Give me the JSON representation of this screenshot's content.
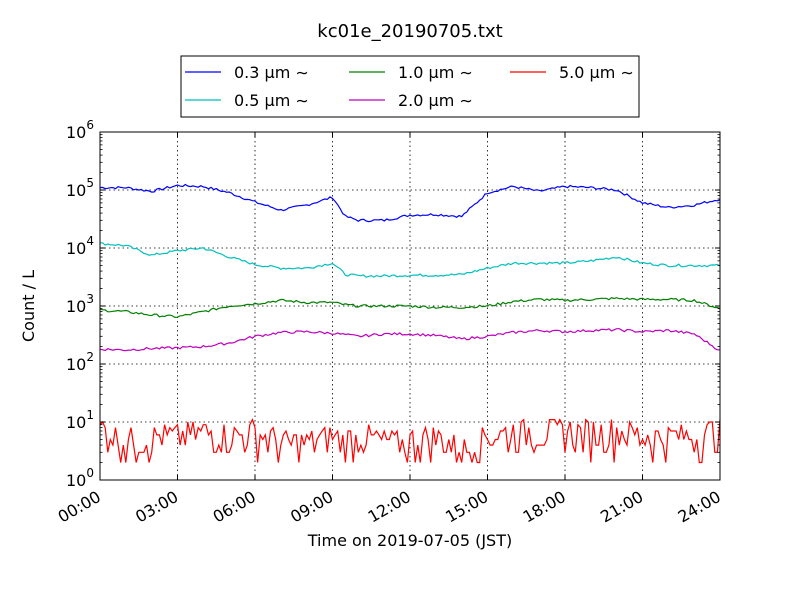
{
  "chart_data": {
    "type": "line",
    "title": "kc01e_20190705.txt",
    "xlabel": "Time on 2019-07-05 (JST)",
    "ylabel": "Count / L",
    "yscale": "log",
    "ylim": [
      1,
      1000000
    ],
    "xlim": [
      "00:00",
      "24:00"
    ],
    "grid": true,
    "legend_position": "top-center",
    "x_tick_labels": [
      "00:00",
      "03:00",
      "06:00",
      "09:00",
      "12:00",
      "15:00",
      "18:00",
      "21:00",
      "24:00"
    ],
    "y_tick_labels": [
      {
        "base": "10",
        "exp": "0"
      },
      {
        "base": "10",
        "exp": "1"
      },
      {
        "base": "10",
        "exp": "2"
      },
      {
        "base": "10",
        "exp": "3"
      },
      {
        "base": "10",
        "exp": "4"
      },
      {
        "base": "10",
        "exp": "5"
      },
      {
        "base": "10",
        "exp": "6"
      }
    ],
    "x_hours": [
      0,
      1,
      2,
      3,
      4,
      5,
      6,
      7,
      8,
      9,
      9.5,
      10,
      11,
      12,
      13,
      14,
      15,
      16,
      17,
      18,
      19,
      20,
      21,
      22,
      23,
      24
    ],
    "series": [
      {
        "name": "0.3 µm ∼",
        "color": "#0000ff",
        "values": [
          110000,
          110000,
          95000,
          120000,
          115000,
          90000,
          62000,
          45000,
          55000,
          75000,
          35000,
          30000,
          30000,
          37000,
          38000,
          35000,
          90000,
          115000,
          95000,
          115000,
          110000,
          100000,
          60000,
          50000,
          55000,
          70000
        ]
      },
      {
        "name": "0.5 µm ∼",
        "color": "#00bfbf",
        "values": [
          12000,
          11000,
          7500,
          9000,
          10000,
          7000,
          5200,
          4500,
          4500,
          5500,
          3500,
          3300,
          3300,
          3400,
          3400,
          3500,
          4500,
          5500,
          5500,
          5500,
          6000,
          7000,
          5500,
          5000,
          5000,
          5000
        ]
      },
      {
        "name": "1.0 µm ∼",
        "color": "#008000",
        "values": [
          850,
          800,
          700,
          650,
          800,
          1000,
          1100,
          1250,
          1150,
          1150,
          1050,
          1000,
          1000,
          1000,
          950,
          950,
          1000,
          1200,
          1300,
          1250,
          1300,
          1350,
          1300,
          1300,
          1250,
          900
        ]
      },
      {
        "name": "2.0 µm ∼",
        "color": "#bf00bf",
        "values": [
          180,
          175,
          185,
          190,
          200,
          230,
          300,
          350,
          360,
          340,
          320,
          300,
          330,
          330,
          310,
          270,
          300,
          350,
          380,
          360,
          380,
          390,
          360,
          380,
          330,
          170
        ]
      },
      {
        "name": "5.0 µm ∼",
        "color": "#ff0000",
        "values": [
          7,
          4,
          5,
          5,
          6,
          5,
          6,
          4,
          4,
          5,
          4,
          5,
          4,
          4,
          5,
          3,
          5,
          6,
          6,
          6,
          6,
          6,
          5,
          5,
          5,
          7
        ]
      }
    ]
  }
}
